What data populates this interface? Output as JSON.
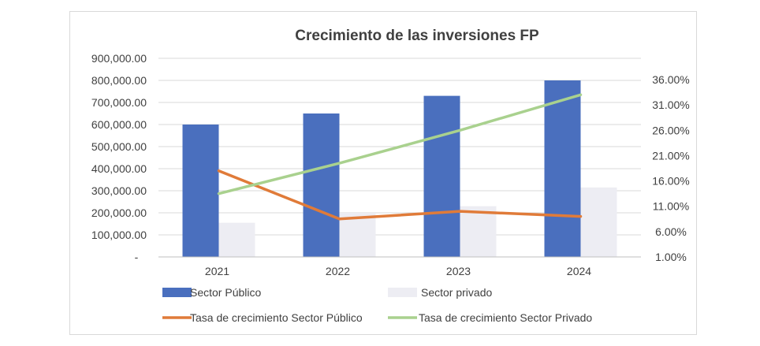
{
  "chart_data": {
    "type": "bar",
    "title": "Crecimiento de las inversiones FP",
    "categories": [
      "2021",
      "2022",
      "2023",
      "2024"
    ],
    "series": [
      {
        "name": "Sector Público",
        "kind": "bar",
        "axis": "left",
        "color": "#4a6fbe",
        "values": [
          600000,
          650000,
          730000,
          800000
        ]
      },
      {
        "name": "Sector privado",
        "kind": "bar",
        "axis": "left",
        "color": "#ededf3",
        "values": [
          155000,
          200000,
          230000,
          315000
        ]
      },
      {
        "name": "Tasa de crecimiento Sector Público",
        "kind": "line",
        "axis": "right",
        "color": "#e07b39",
        "values": [
          0.18,
          0.085,
          0.1,
          0.09
        ]
      },
      {
        "name": "Tasa de crecimiento Sector Privado",
        "kind": "line",
        "axis": "right",
        "color": "#a9d18e",
        "values": [
          0.135,
          0.195,
          0.26,
          0.33
        ]
      }
    ],
    "y_left": {
      "ylim": [
        0,
        900000
      ],
      "ticks": [
        "-",
        "100,000.00",
        "200,000.00",
        "300,000.00",
        "400,000.00",
        "500,000.00",
        "600,000.00",
        "700,000.00",
        "800,000.00",
        "900,000.00"
      ]
    },
    "y_right": {
      "ylim": [
        0.01,
        0.36
      ],
      "ticks": [
        "1.00%",
        "6.00%",
        "11.00%",
        "16.00%",
        "21.00%",
        "26.00%",
        "31.00%",
        "36.00%"
      ]
    },
    "grid": true,
    "legend_position": "bottom"
  }
}
